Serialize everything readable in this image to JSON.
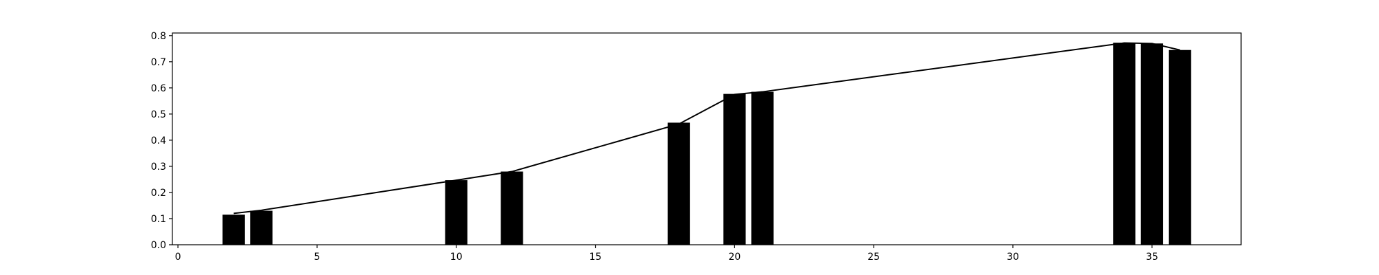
{
  "chart_data": {
    "type": "bar",
    "title": "",
    "xlabel": "",
    "ylabel": "",
    "xlim": [
      -0.2,
      38.2
    ],
    "ylim": [
      0,
      0.81
    ],
    "grid": false,
    "legend": "none",
    "colors": {
      "bar": "#000000",
      "line": "#000000",
      "axes": "#000000",
      "background": "#ffffff"
    },
    "x_ticks": [
      0,
      5,
      10,
      15,
      20,
      25,
      30,
      35
    ],
    "x_tick_labels": [
      "0",
      "5",
      "10",
      "15",
      "20",
      "25",
      "30",
      "35"
    ],
    "y_ticks": [
      0.0,
      0.1,
      0.2,
      0.3,
      0.4,
      0.5,
      0.6,
      0.7,
      0.8
    ],
    "y_tick_labels": [
      "0.0",
      "0.1",
      "0.2",
      "0.3",
      "0.4",
      "0.5",
      "0.6",
      "0.7",
      "0.8"
    ],
    "bar_width": 0.8,
    "series": [
      {
        "type": "bar",
        "x": [
          2,
          3,
          10,
          12,
          18,
          20,
          21,
          34,
          35,
          36
        ],
        "values": [
          0.115,
          0.13,
          0.247,
          0.28,
          0.467,
          0.577,
          0.585,
          0.773,
          0.77,
          0.745
        ]
      },
      {
        "type": "line",
        "x": [
          2,
          3,
          10,
          12,
          18,
          20,
          21,
          34,
          35,
          36
        ],
        "values": [
          0.12,
          0.132,
          0.247,
          0.28,
          0.462,
          0.575,
          0.585,
          0.772,
          0.77,
          0.745
        ]
      }
    ]
  }
}
